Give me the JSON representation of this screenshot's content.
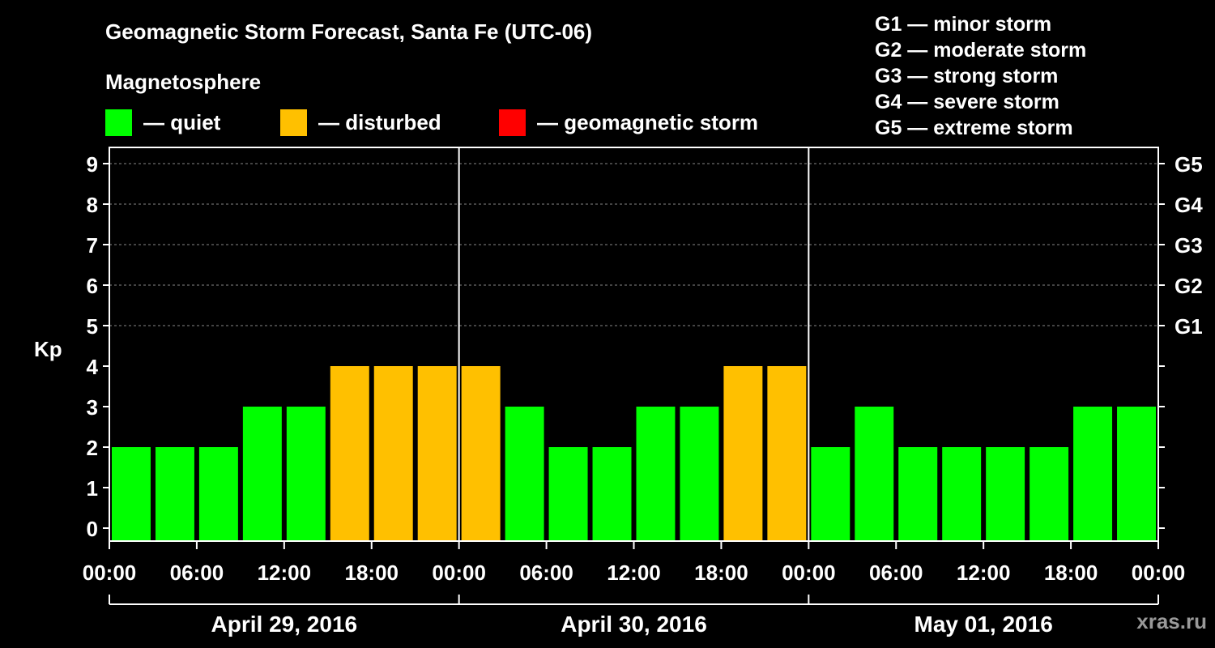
{
  "title": "Geomagnetic Storm Forecast, Santa Fe (UTC-06)",
  "subtitle": "Magnetosphere",
  "legend": [
    {
      "label": "— quiet",
      "color": "#00ff00"
    },
    {
      "label": "— disturbed",
      "color": "#ffc000"
    },
    {
      "label": "— geomagnetic storm",
      "color": "#ff0000"
    }
  ],
  "storm_levels": [
    "G1 — minor storm",
    "G2 — moderate storm",
    "G3 — strong storm",
    "G4 — severe storm",
    "G5 — extreme storm"
  ],
  "site": "xras.ru",
  "chart_data": {
    "type": "bar",
    "ylabel": "Kp",
    "ylim": [
      0,
      9
    ],
    "yticks": [
      0,
      1,
      2,
      3,
      4,
      5,
      6,
      7,
      8,
      9
    ],
    "right_ticks": [
      {
        "kp": 5,
        "label": "G1"
      },
      {
        "kp": 6,
        "label": "G2"
      },
      {
        "kp": 7,
        "label": "G3"
      },
      {
        "kp": 8,
        "label": "G4"
      },
      {
        "kp": 9,
        "label": "G5"
      }
    ],
    "xtick_labels": [
      "00:00",
      "06:00",
      "12:00",
      "18:00",
      "00:00",
      "06:00",
      "12:00",
      "18:00",
      "00:00",
      "06:00",
      "12:00",
      "18:00",
      "00:00"
    ],
    "days": [
      "April 29, 2016",
      "April 30, 2016",
      "May 01, 2016"
    ],
    "interval_hours": 3,
    "values": [
      2,
      2,
      2,
      3,
      3,
      4,
      4,
      4,
      4,
      3,
      2,
      2,
      3,
      3,
      4,
      4,
      2,
      3,
      2,
      2,
      2,
      2,
      3,
      3
    ],
    "colors": {
      "quiet": "#00ff00",
      "disturbed": "#ffc000",
      "storm": "#ff0000"
    },
    "grid": true
  }
}
